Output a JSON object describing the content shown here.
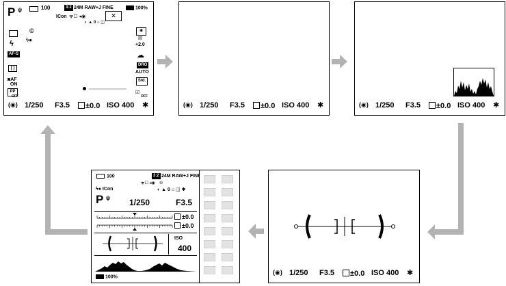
{
  "screen1": {
    "mode": "P",
    "shots_remaining": "100",
    "aspect": "3:2",
    "image_size_quality": "24M RAW+J FINE",
    "battery": "100%",
    "exposure_comp_flash": "+2.0",
    "auto_label": "AUTO",
    "af_label": "AF-S",
    "off_label": "OFF",
    "on_label": "ON"
  },
  "settings": {
    "shutter": "1/250",
    "aperture": "F3.5",
    "exposure": "±0.0",
    "iso": "ISO 400"
  },
  "screen5": {
    "shots_remaining": "100",
    "aspect": "3:2",
    "image_size_quality": "24M RAW+J FINE",
    "mode": "P",
    "shutter": "1/250",
    "aperture": "F3.5",
    "exp1": "±0.0",
    "exp2": "±0.0",
    "iso_label": "ISO",
    "iso_value": "400",
    "battery": "100%"
  },
  "colors": {
    "arrow": "#b3b3b3",
    "grid_cell": "#e3e3e3"
  }
}
